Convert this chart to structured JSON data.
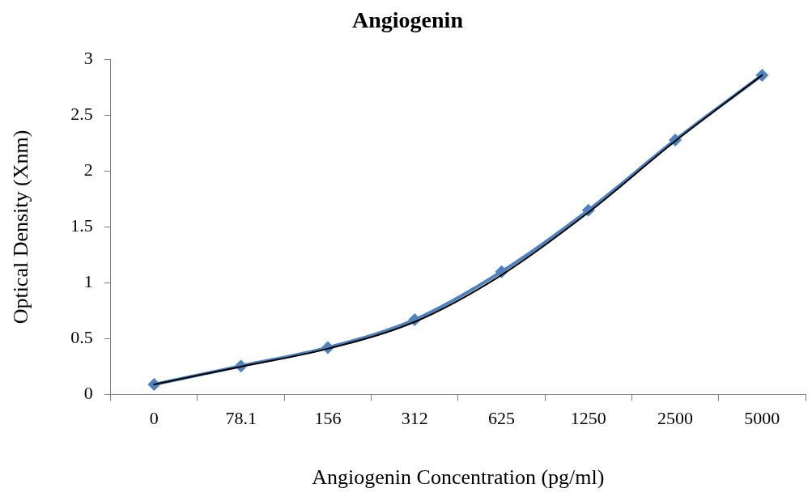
{
  "chart_data": {
    "type": "line",
    "title": "Angiogenin",
    "xlabel": "Angiogenin Concentration (pg/ml)",
    "ylabel": "Optical Density (Xnm)",
    "categories": [
      "0",
      "78.1",
      "156",
      "312",
      "625",
      "1250",
      "2500",
      "5000"
    ],
    "series": [
      {
        "color": "#4f81bd",
        "marker": "diamond",
        "values": [
          0.09,
          0.255,
          0.42,
          0.67,
          1.1,
          1.65,
          2.28,
          2.86
        ]
      },
      {
        "color": "#000000",
        "marker": "none",
        "values": [
          0.09,
          0.25,
          0.41,
          0.65,
          1.07,
          1.63,
          2.27,
          2.86
        ]
      }
    ],
    "ylim": [
      0,
      3
    ],
    "yticks": [
      0,
      0.5,
      1,
      1.5,
      2,
      2.5,
      3
    ]
  }
}
